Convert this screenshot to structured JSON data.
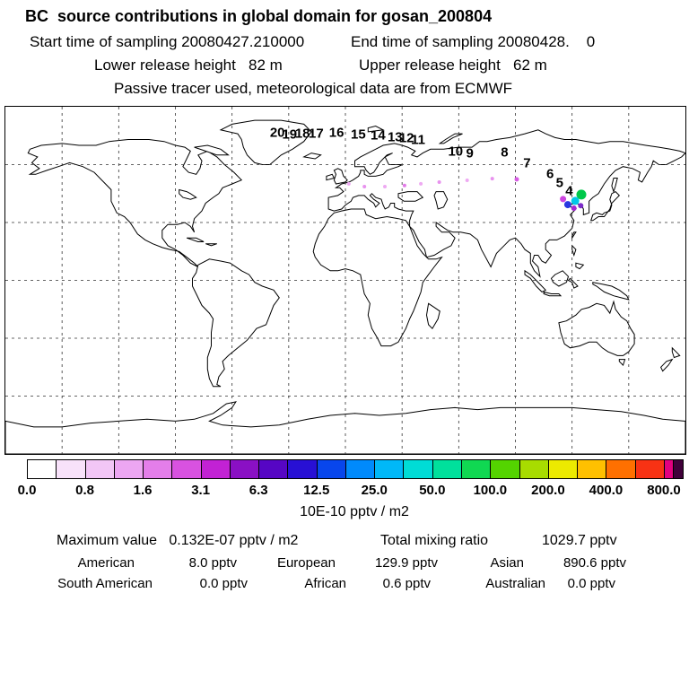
{
  "header": {
    "title": "BC  source contributions in global domain for gosan_200804",
    "start_time": "Start time of sampling 20080427.210000",
    "end_time": "End time of sampling 20080428.    0",
    "lower_release": "Lower release height   82 m",
    "upper_release": "Upper release height   62 m",
    "tracer_note": "Passive tracer used, meteorological data are from ECMWF"
  },
  "chart_data": {
    "type": "scatter",
    "title": "BC source contributions in global domain for gosan_200804",
    "station": "gosan_200804",
    "map": {
      "projection": "equirectangular",
      "lon_range": [
        -180,
        180
      ],
      "lat_range": [
        -90,
        90
      ],
      "grid_step_deg": 30,
      "grid": "dashed"
    },
    "trajectory_hours": [
      {
        "label": "20",
        "fx": 0.4,
        "fy": 0.075
      },
      {
        "label": "19",
        "fx": 0.418,
        "fy": 0.08
      },
      {
        "label": "18",
        "fx": 0.437,
        "fy": 0.078
      },
      {
        "label": "17",
        "fx": 0.457,
        "fy": 0.078
      },
      {
        "label": "16",
        "fx": 0.487,
        "fy": 0.075
      },
      {
        "label": "15",
        "fx": 0.519,
        "fy": 0.08
      },
      {
        "label": "14",
        "fx": 0.548,
        "fy": 0.083
      },
      {
        "label": "13",
        "fx": 0.573,
        "fy": 0.088
      },
      {
        "label": "12",
        "fx": 0.59,
        "fy": 0.09
      },
      {
        "label": "11",
        "fx": 0.607,
        "fy": 0.096
      },
      {
        "label": "10",
        "fx": 0.662,
        "fy": 0.129
      },
      {
        "label": "9",
        "fx": 0.683,
        "fy": 0.134
      },
      {
        "label": "8",
        "fx": 0.734,
        "fy": 0.132
      },
      {
        "label": "7",
        "fx": 0.767,
        "fy": 0.163
      },
      {
        "label": "6",
        "fx": 0.801,
        "fy": 0.194
      },
      {
        "label": "5",
        "fx": 0.815,
        "fy": 0.22
      },
      {
        "label": "4",
        "fx": 0.829,
        "fy": 0.243
      }
    ],
    "contribution_dots": [
      {
        "fx": 0.847,
        "fy": 0.253,
        "r": 5.5,
        "color": "#00c84a"
      },
      {
        "fx": 0.838,
        "fy": 0.271,
        "r": 4.5,
        "color": "#00c8e8"
      },
      {
        "fx": 0.827,
        "fy": 0.282,
        "r": 4.0,
        "color": "#2838e0"
      },
      {
        "fx": 0.82,
        "fy": 0.266,
        "r": 3.5,
        "color": "#cc44e0"
      },
      {
        "fx": 0.836,
        "fy": 0.292,
        "r": 3.0,
        "color": "#a428d4"
      },
      {
        "fx": 0.846,
        "fy": 0.285,
        "r": 3.0,
        "color": "#7c2cc8"
      },
      {
        "fx": 0.505,
        "fy": 0.222,
        "r": 2.0,
        "color": "#eeaaf2"
      },
      {
        "fx": 0.528,
        "fy": 0.23,
        "r": 2.0,
        "color": "#e892ee"
      },
      {
        "fx": 0.558,
        "fy": 0.23,
        "r": 2.0,
        "color": "#eeaaf2"
      },
      {
        "fx": 0.587,
        "fy": 0.227,
        "r": 2.0,
        "color": "#e27ae8"
      },
      {
        "fx": 0.611,
        "fy": 0.222,
        "r": 2.0,
        "color": "#eeaaf2"
      },
      {
        "fx": 0.638,
        "fy": 0.217,
        "r": 2.0,
        "color": "#e892ee"
      },
      {
        "fx": 0.679,
        "fy": 0.212,
        "r": 2.0,
        "color": "#eeaaf2"
      },
      {
        "fx": 0.716,
        "fy": 0.207,
        "r": 2.0,
        "color": "#e892ee"
      },
      {
        "fx": 0.752,
        "fy": 0.209,
        "r": 2.5,
        "color": "#d85ce4"
      }
    ],
    "colorbar": {
      "unit": "10E-10 pptv / m2",
      "tick_labels": [
        "0.0",
        "0.8",
        "1.6",
        "3.1",
        "6.3",
        "12.5",
        "25.0",
        "50.0",
        "100.0",
        "200.0",
        "400.0",
        "800.0"
      ],
      "colors": [
        "#ffffff",
        "#f8e2fa",
        "#f2c6f6",
        "#eca6f2",
        "#e47eea",
        "#d852e0",
        "#c222d4",
        "#8a10c4",
        "#5606c4",
        "#2810d4",
        "#0846ec",
        "#008afc",
        "#00b8f8",
        "#00dcd6",
        "#00e09c",
        "#10d852",
        "#54d400",
        "#a8dc00",
        "#ecea00",
        "#ffc000",
        "#ff7000",
        "#f83214",
        "#e20080",
        "#40003a"
      ]
    }
  },
  "stats": {
    "max_value": "Maximum value   0.132E-07 pptv / m2",
    "total_label": "Total mixing ratio",
    "total_value": "1029.7 pptv",
    "regions": [
      {
        "name": "American",
        "value": "8.0 pptv"
      },
      {
        "name": "European",
        "value": "129.9 pptv"
      },
      {
        "name": "Asian",
        "value": "890.6 pptv"
      },
      {
        "name": "South American",
        "value": "0.0 pptv"
      },
      {
        "name": "African",
        "value": "0.6 pptv"
      },
      {
        "name": "Australian",
        "value": "0.0 pptv"
      }
    ]
  }
}
